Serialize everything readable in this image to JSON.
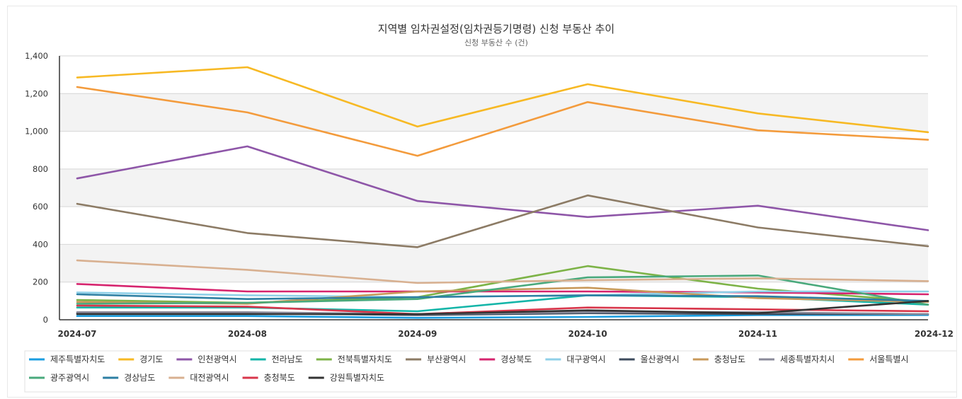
{
  "chart_data": {
    "type": "line",
    "title": "지역별 임차권설정(임차권등기명령) 신청 부동산 추이",
    "subtitle": "신청 부동산 수 (건)",
    "xlabel": "",
    "ylabel": "",
    "categories": [
      "2024-07",
      "2024-08",
      "2024-09",
      "2024-10",
      "2024-11",
      "2024-12"
    ],
    "ylim": [
      0,
      1400
    ],
    "yticks": [
      "0",
      "200",
      "400",
      "600",
      "800",
      "1,000",
      "1,200",
      "1,400"
    ],
    "grid": true,
    "legend_position": "bottom",
    "series": [
      {
        "name": "제주특별자치도",
        "color": "#1a9de0",
        "values": [
          20,
          20,
          10,
          15,
          25,
          25
        ]
      },
      {
        "name": "경기도",
        "color": "#f7b924",
        "values": [
          1285,
          1340,
          1025,
          1250,
          1095,
          995
        ]
      },
      {
        "name": "인천광역시",
        "color": "#8e56a8",
        "values": [
          750,
          920,
          630,
          545,
          605,
          475
        ]
      },
      {
        "name": "전라남도",
        "color": "#13b5a8",
        "values": [
          65,
          65,
          45,
          130,
          120,
          80
        ]
      },
      {
        "name": "전북특별자치도",
        "color": "#7db347",
        "values": [
          105,
          90,
          120,
          285,
          165,
          95
        ]
      },
      {
        "name": "부산광역시",
        "color": "#8c7b65",
        "values": [
          615,
          460,
          385,
          660,
          490,
          390
        ]
      },
      {
        "name": "경상북도",
        "color": "#d6246e",
        "values": [
          190,
          150,
          150,
          150,
          145,
          135
        ]
      },
      {
        "name": "대구광역시",
        "color": "#8fd0e8",
        "values": [
          145,
          130,
          120,
          130,
          150,
          150
        ]
      },
      {
        "name": "울산광역시",
        "color": "#3d4b5c",
        "values": [
          35,
          35,
          25,
          35,
          30,
          30
        ]
      },
      {
        "name": "충청남도",
        "color": "#c8995a",
        "values": [
          95,
          85,
          150,
          170,
          115,
          95
        ]
      },
      {
        "name": "세종특별자치시",
        "color": "#8a8a9a",
        "values": [
          40,
          40,
          30,
          40,
          40,
          30
        ]
      },
      {
        "name": "서울특별시",
        "color": "#f39b3c",
        "values": [
          1235,
          1100,
          870,
          1155,
          1005,
          955
        ]
      },
      {
        "name": "광주광역시",
        "color": "#49a97c",
        "values": [
          85,
          90,
          110,
          225,
          235,
          80
        ]
      },
      {
        "name": "경상남도",
        "color": "#2d7fa3",
        "values": [
          135,
          110,
          120,
          130,
          125,
          100
        ]
      },
      {
        "name": "대전광역시",
        "color": "#d8b090",
        "values": [
          315,
          265,
          195,
          210,
          220,
          205
        ]
      },
      {
        "name": "충청북도",
        "color": "#d8364b",
        "values": [
          75,
          70,
          30,
          65,
          55,
          45
        ]
      },
      {
        "name": "강원특별자치도",
        "color": "#333333",
        "values": [
          30,
          30,
          30,
          50,
          35,
          100
        ]
      }
    ]
  }
}
